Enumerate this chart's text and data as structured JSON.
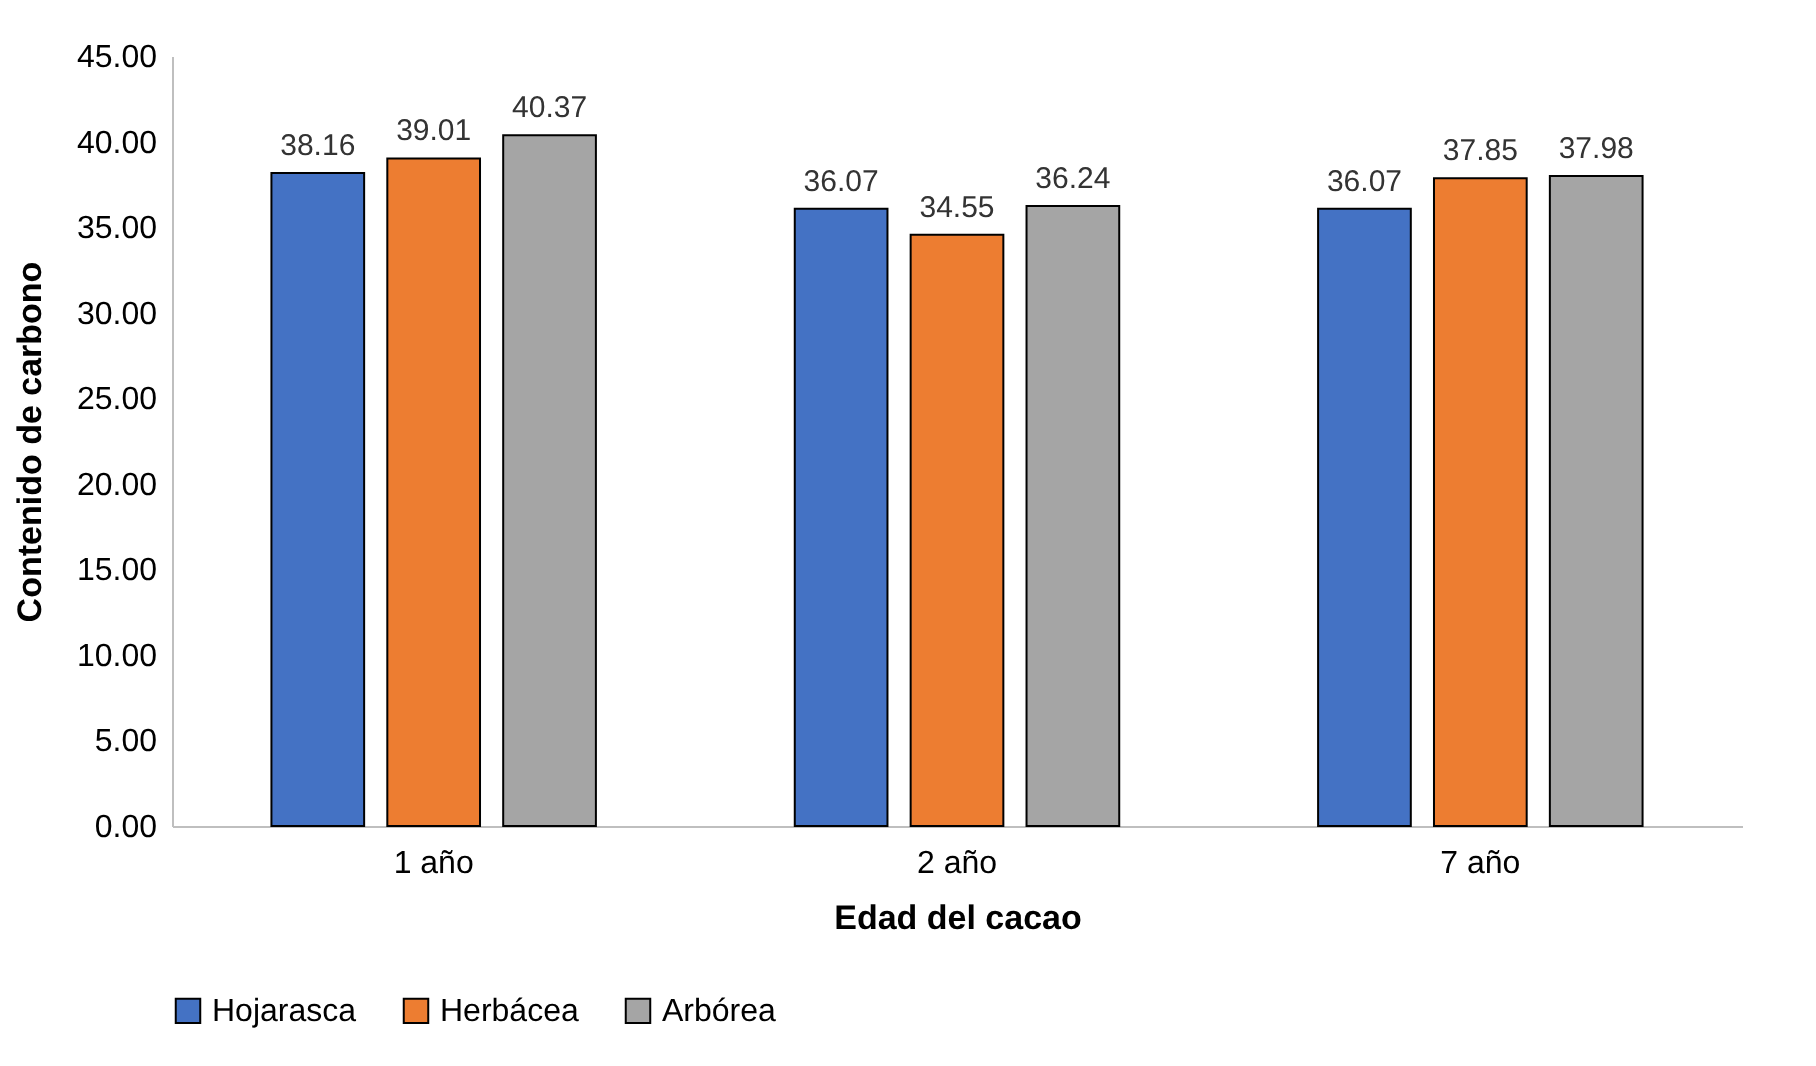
{
  "chart_data": {
    "type": "bar",
    "xlabel": "Edad del cacao",
    "ylabel": "Contenido de carbono",
    "categories": [
      "1 año",
      "2 año",
      "7 año"
    ],
    "series": [
      {
        "name": "Hojarasca",
        "color": "#4472c4",
        "values": [
          38.16,
          36.07,
          36.07
        ]
      },
      {
        "name": "Herbácea",
        "color": "#ed7d31",
        "values": [
          39.01,
          34.55,
          37.85
        ]
      },
      {
        "name": "Arbórea",
        "color": "#a5a5a5",
        "values": [
          40.37,
          36.24,
          37.98
        ]
      }
    ],
    "ylim": [
      0,
      45
    ],
    "yticks": [
      {
        "value": 0,
        "label": "0.00"
      },
      {
        "value": 5,
        "label": "5.00"
      },
      {
        "value": 10,
        "label": "10.00"
      },
      {
        "value": 15,
        "label": "15.00"
      },
      {
        "value": 20,
        "label": "20.00"
      },
      {
        "value": 25,
        "label": "25.00"
      },
      {
        "value": 30,
        "label": "30.00"
      },
      {
        "value": 35,
        "label": "35.00"
      },
      {
        "value": 40,
        "label": "40.00"
      },
      {
        "value": 45,
        "label": "45.00"
      }
    ],
    "data_labels": true,
    "legend": "bottom"
  }
}
